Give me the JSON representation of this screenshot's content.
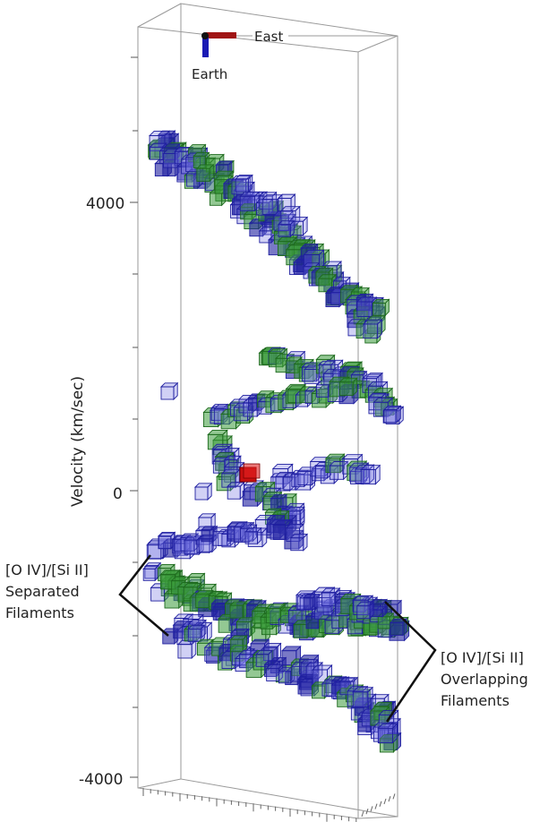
{
  "orientation": {
    "east_label": "East",
    "earth_label": "Earth",
    "east_color": "#a01414",
    "earth_color": "#1a1ab4"
  },
  "axis": {
    "ylabel": "Velocity (km/sec)",
    "ticks": [
      {
        "value": 4000,
        "label": "4000"
      },
      {
        "value": 0,
        "label": "0"
      },
      {
        "value": -4000,
        "label": "-4000"
      }
    ]
  },
  "annotations": {
    "separated": [
      "[O IV]/[Si II]",
      "Separated",
      "Filaments"
    ],
    "overlapping": [
      "[O IV]/[Si II]",
      "Overlapping",
      "Filaments"
    ]
  },
  "colors": {
    "oiv_blue": "#7070e0",
    "oiv_blue_dark": "#2020a0",
    "siii_green": "#3a9a3a",
    "siii_green_dark": "#1e6a1e",
    "center_red": "#c81010",
    "box_frame": "#9a9a9a"
  },
  "chart_data": {
    "type": "scatter",
    "description_free": true,
    "series": [
      {
        "name": "",
        "color": "#7070e0",
        "values": []
      },
      {
        "name": "",
        "color": "#3a9a3a",
        "values": []
      }
    ]
  }
}
